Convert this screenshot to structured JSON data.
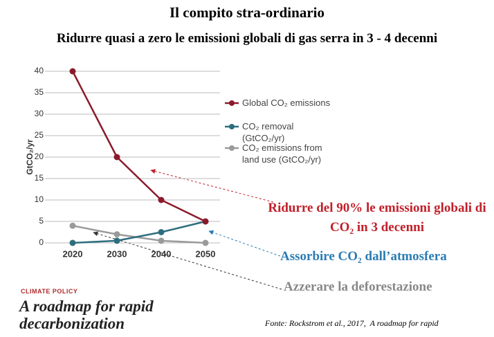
{
  "chart_data": {
    "type": "line",
    "title": "Il compito stra-ordinario",
    "subtitle": "Ridurre quasi a zero le emissioni globali di gas serra in 3 - 4 decenni",
    "y_label": "GtCO₂/yr",
    "categories": [
      "2020",
      "2030",
      "2040",
      "2050"
    ],
    "series": [
      {
        "name": "Global CO₂ emissions",
        "color": "#8b1a2b",
        "values": [
          40,
          20,
          10,
          5
        ]
      },
      {
        "name": "CO₂ removal (GtCO₂/yr)",
        "color": "#2d6e7e",
        "values": [
          0,
          0.5,
          2.5,
          5
        ]
      },
      {
        "name": "CO₂ emissions from land use (GtCO₂/yr)",
        "color": "#9a9a9a",
        "values": [
          4,
          2,
          0.5,
          0
        ]
      }
    ],
    "ylim": [
      0,
      40
    ],
    "yticks": [
      0,
      5,
      10,
      15,
      20,
      25,
      30,
      35,
      40
    ],
    "grid": true,
    "annotations": [
      "Ridurre del 90% le emissioni globali di CO₂ in 3 decenni",
      "Assorbire CO₂ dall’atmosfera",
      "Azzerare la deforestazione"
    ],
    "kicker": "CLIMATE POLICY",
    "headline": "A roadmap for rapid decarbonization",
    "source": "Fonte: Rockstrom et al., 2017,  A roadmap for rapid"
  }
}
